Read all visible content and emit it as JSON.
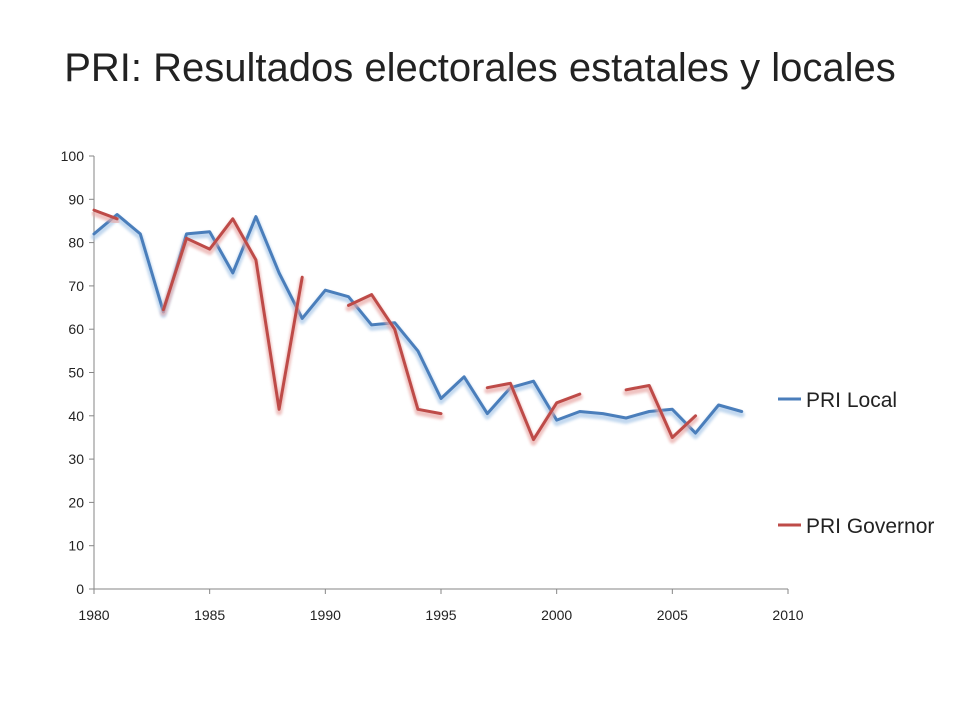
{
  "title": "PRI: Resultados electorales estatales y locales",
  "chart_data": {
    "type": "line",
    "title": "",
    "xlabel": "",
    "ylabel": "",
    "xlim": [
      1980,
      2010
    ],
    "ylim": [
      0,
      100
    ],
    "x_ticks": [
      1980,
      1985,
      1990,
      1995,
      2000,
      2005,
      2010
    ],
    "y_ticks": [
      0,
      10,
      20,
      30,
      40,
      50,
      60,
      70,
      80,
      90,
      100
    ],
    "grid": false,
    "legend_position": "right",
    "series": [
      {
        "name": "PRI Local",
        "color": "#4a7ebb",
        "segments": [
          [
            [
              1980,
              82
            ],
            [
              1981,
              86.5
            ],
            [
              1982,
              82
            ],
            [
              1983,
              64
            ],
            [
              1984,
              82
            ],
            [
              1985,
              82.5
            ],
            [
              1986,
              73
            ],
            [
              1987,
              86
            ],
            [
              1988,
              73
            ],
            [
              1989,
              62.5
            ],
            [
              1990,
              69
            ],
            [
              1991,
              67.5
            ],
            [
              1992,
              61
            ],
            [
              1993,
              61.5
            ],
            [
              1994,
              55
            ],
            [
              1995,
              44
            ],
            [
              1996,
              49
            ],
            [
              1997,
              40.5
            ],
            [
              1998,
              46.5
            ],
            [
              1999,
              48
            ],
            [
              2000,
              39
            ],
            [
              2001,
              41
            ],
            [
              2002,
              40.5
            ],
            [
              2003,
              39.5
            ],
            [
              2004,
              41
            ],
            [
              2005,
              41.5
            ],
            [
              2006,
              36
            ],
            [
              2007,
              42.5
            ],
            [
              2008,
              41
            ]
          ]
        ]
      },
      {
        "name": "PRI Governor",
        "color": "#be4b48",
        "segments": [
          [
            [
              1980,
              87.5
            ],
            [
              1981,
              85.5
            ]
          ],
          [
            [
              1983,
              64.5
            ],
            [
              1984,
              81
            ],
            [
              1985,
              78.5
            ],
            [
              1986,
              85.5
            ],
            [
              1987,
              76
            ],
            [
              1988,
              41.5
            ],
            [
              1989,
              72
            ]
          ],
          [
            [
              1991,
              65.5
            ],
            [
              1992,
              68
            ],
            [
              1993,
              60
            ],
            [
              1994,
              41.5
            ],
            [
              1995,
              40.5
            ]
          ],
          [
            [
              1997,
              46.5
            ],
            [
              1998,
              47.5
            ],
            [
              1999,
              34.5
            ],
            [
              2000,
              43
            ],
            [
              2001,
              45
            ]
          ],
          [
            [
              2003,
              46
            ],
            [
              2004,
              47
            ],
            [
              2005,
              35
            ],
            [
              2006,
              40
            ]
          ]
        ]
      }
    ]
  }
}
